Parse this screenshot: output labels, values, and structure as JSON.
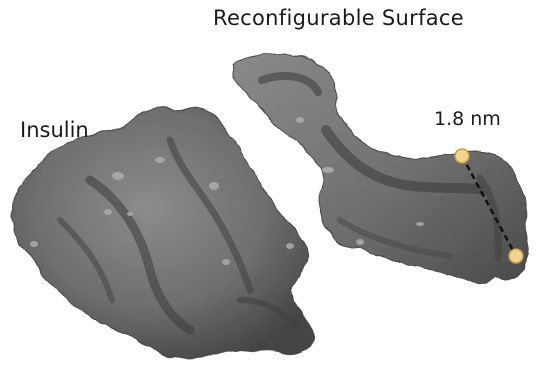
{
  "labels": {
    "surface": "Reconfigurable Surface",
    "insulin": "Insulin",
    "distance": "1.8 nm"
  },
  "colors": {
    "molecule_base": "#7a7a7a",
    "molecule_shadow": "#3e3e3e",
    "molecule_highlight": "#a8a8a8",
    "marker_fill": "#f2d28f",
    "marker_stroke": "#c89b45",
    "measure_line": "#111111"
  }
}
